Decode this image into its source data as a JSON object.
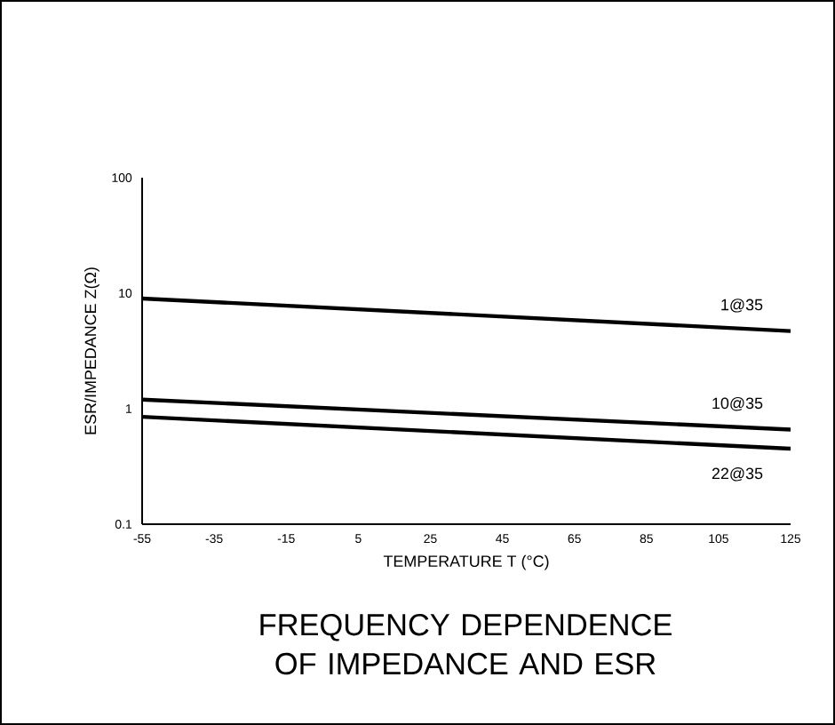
{
  "chart_data": {
    "type": "line",
    "title": "FREQUENCY DEPENDENCE OF IMPEDANCE AND ESR",
    "xlabel": "TEMPERATURE T (°C)",
    "ylabel": "ESR/IMPEDANCE Z(Ω)",
    "x": [
      -55,
      125
    ],
    "series": [
      {
        "name": "1@35",
        "color": "#000000",
        "values": [
          9,
          4.7
        ]
      },
      {
        "name": "10@35",
        "color": "#000000",
        "values": [
          1.2,
          0.66
        ]
      },
      {
        "name": "22@35",
        "color": "#000000",
        "values": [
          0.85,
          0.45
        ]
      }
    ],
    "log": "y",
    "xlim": [
      -55,
      125
    ],
    "xticks": [
      -55,
      -35,
      -15,
      5,
      25,
      45,
      65,
      85,
      105,
      125
    ],
    "ylim": [
      0.1,
      100
    ],
    "yticks": [
      0.1,
      1,
      10,
      100
    ],
    "grid": false,
    "legend": false,
    "marker": "none",
    "line_style": "solid"
  }
}
